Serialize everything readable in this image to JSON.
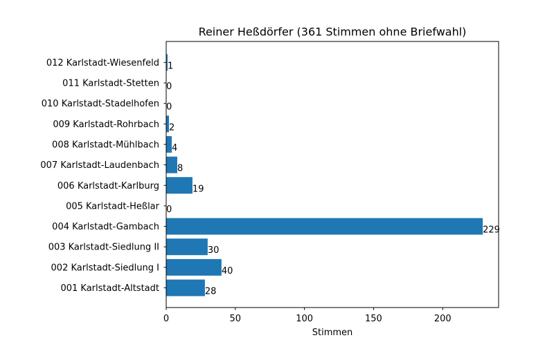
{
  "chart_data": {
    "type": "bar",
    "orientation": "horizontal",
    "title": "Reiner Heßdörfer (361 Stimmen ohne Briefwahl)",
    "xlabel": "Stimmen",
    "ylabel": "",
    "xlim": [
      0,
      240.45
    ],
    "x_ticks": [
      0,
      50,
      100,
      150,
      200
    ],
    "grid": false,
    "legend": "none",
    "bar_color": "#1f77b4",
    "categories": [
      "001 Karlstadt-Altstadt",
      "002 Karlstadt-Siedlung I",
      "003 Karlstadt-Siedlung II",
      "004 Karlstadt-Gambach",
      "005 Karlstadt-Heßlar",
      "006 Karlstadt-Karlburg",
      "007 Karlstadt-Laudenbach",
      "008 Karlstadt-Mühlbach",
      "009 Karlstadt-Rohrbach",
      "010 Karlstadt-Stadelhofen",
      "011 Karlstadt-Stetten",
      "012 Karlstadt-Wiesenfeld"
    ],
    "values": [
      28,
      40,
      30,
      229,
      0,
      19,
      8,
      4,
      2,
      0,
      0,
      1
    ],
    "data_labels": [
      "28",
      "40",
      "30",
      "229",
      "0",
      "19",
      "8",
      "4",
      "2",
      "0",
      "0",
      "1"
    ]
  }
}
